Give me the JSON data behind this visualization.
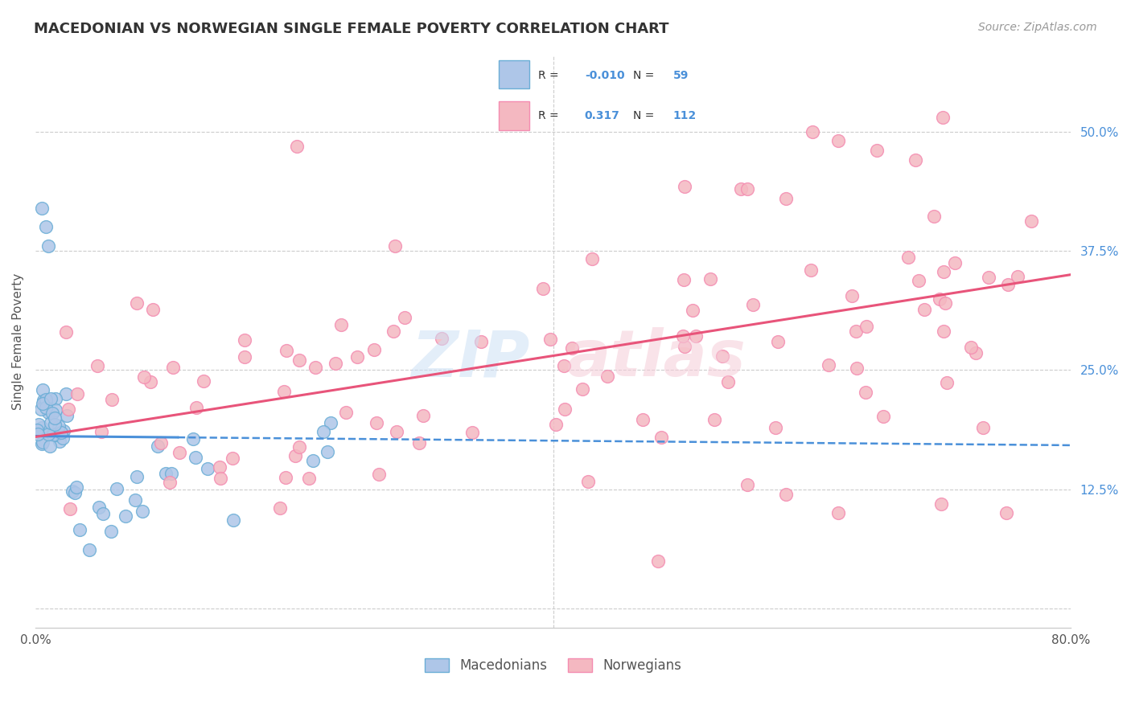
{
  "title": "MACEDONIAN VS NORWEGIAN SINGLE FEMALE POVERTY CORRELATION CHART",
  "source": "Source: ZipAtlas.com",
  "ylabel": "Single Female Poverty",
  "xlim": [
    0.0,
    0.8
  ],
  "ylim": [
    -0.02,
    0.58
  ],
  "macedonian_color": "#aec6e8",
  "norwegian_color": "#f4b8c1",
  "macedonian_edge": "#6baed6",
  "norwegian_edge": "#f48cb1",
  "trend_mac_color": "#4a90d9",
  "trend_nor_color": "#e8547a",
  "legend_R_mac": "-0.010",
  "legend_N_mac": "59",
  "legend_R_nor": "0.317",
  "legend_N_nor": "112",
  "background_color": "#ffffff",
  "right_tick_color": "#4a90d9",
  "grid_color": "#cccccc"
}
